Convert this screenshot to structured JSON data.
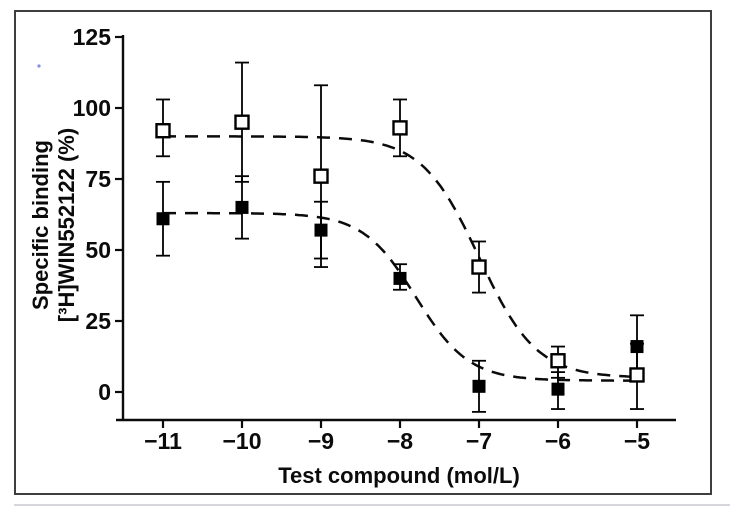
{
  "figure": {
    "background": "#ffffff",
    "border_color": "#3f3f3f",
    "shadow_line_color": "#c9c9d2",
    "artifact_dot_color": "#8a8ae8",
    "ink_color": "#0b0b0b"
  },
  "chart_data": {
    "type": "scatter",
    "title": "",
    "xlabel": "Test compound (mol/L)",
    "ylabel_line1": "Specific binding",
    "ylabel_line2": "[³H]WIN552122 (%)",
    "x_tick_values": [
      -11,
      -10,
      -9,
      -8,
      -7,
      -6,
      -5
    ],
    "x_tick_labels": [
      "−11",
      "−10",
      "−9",
      "−8",
      "−7",
      "−6",
      "−5"
    ],
    "y_tick_values": [
      0,
      25,
      50,
      75,
      100,
      125
    ],
    "y_tick_labels": [
      "0",
      "25",
      "50",
      "75",
      "100",
      "125"
    ],
    "xlim": [
      -11.6,
      -4.5
    ],
    "ylim": [
      -10,
      126
    ],
    "grid": false,
    "legend": "none",
    "series": [
      {
        "name": "open-squares",
        "marker": "open-square",
        "color": "#000000",
        "points": [
          {
            "x": -11,
            "y": 92,
            "hi": 103,
            "lo": 83
          },
          {
            "x": -10,
            "y": 95,
            "hi": 116,
            "lo": 74
          },
          {
            "x": -9,
            "y": 76,
            "hi": 108,
            "lo": 44
          },
          {
            "x": -8,
            "y": 93,
            "hi": 103,
            "lo": 83
          },
          {
            "x": -7,
            "y": 44,
            "hi": 53,
            "lo": 35
          },
          {
            "x": -6,
            "y": 11,
            "hi": 16,
            "lo": 5
          },
          {
            "x": -5,
            "y": 6,
            "hi": 17,
            "lo": -6
          }
        ]
      },
      {
        "name": "filled-squares",
        "marker": "filled-square",
        "color": "#000000",
        "points": [
          {
            "x": -11,
            "y": 61,
            "hi": 74,
            "lo": 48
          },
          {
            "x": -10,
            "y": 65,
            "hi": 76,
            "lo": 54
          },
          {
            "x": -9,
            "y": 57,
            "hi": 67,
            "lo": 47
          },
          {
            "x": -8,
            "y": 40,
            "hi": 45,
            "lo": 36
          },
          {
            "x": -7,
            "y": 2,
            "hi": 11,
            "lo": -7
          },
          {
            "x": -6,
            "y": 1,
            "hi": 7,
            "lo": -6
          },
          {
            "x": -5,
            "y": 16,
            "hi": 27,
            "lo": 5
          }
        ]
      }
    ],
    "fit_curves": [
      {
        "series": "open-squares",
        "style": "dashed",
        "top": 90,
        "bottom": 5,
        "logIC50": -7.0,
        "hill": 1.2,
        "x_start": -11,
        "x_end": -5
      },
      {
        "series": "filled-squares",
        "style": "dashed",
        "top": 63,
        "bottom": 4,
        "logIC50": -7.8,
        "hill": 1.3,
        "x_start": -11,
        "x_end": -5
      }
    ]
  }
}
